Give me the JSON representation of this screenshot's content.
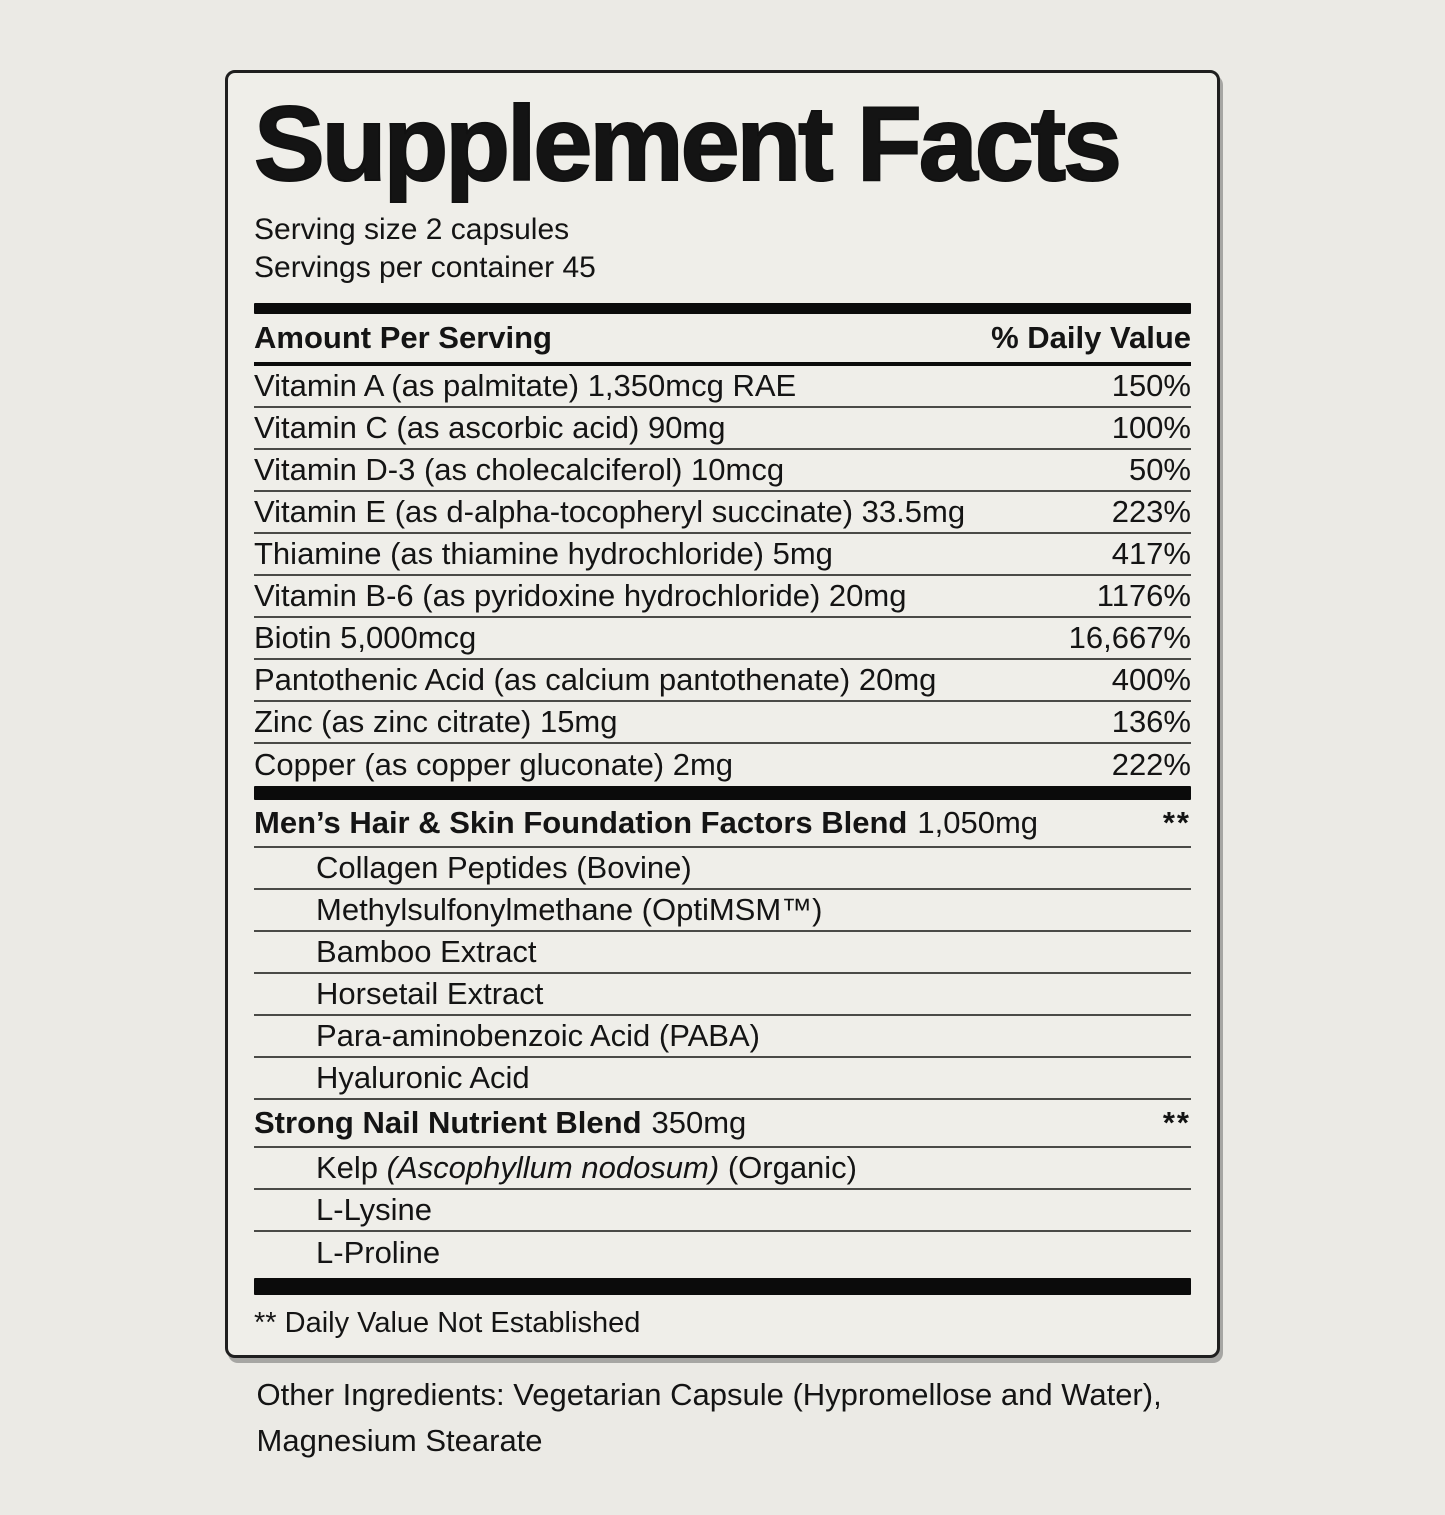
{
  "colors": {
    "page_background": "#ebeae5",
    "label_background": "#efeee9",
    "bar_black": "#0b0b0b",
    "hairline_gray": "#4a4a47",
    "text": "#141414"
  },
  "label": {
    "title": "Supplement Facts",
    "serving_size": "Serving size 2 capsules",
    "servings_per_container": "Servings per container 45",
    "columns": {
      "amount": "Amount Per Serving",
      "daily_value": "% Daily Value"
    },
    "nutrients": [
      {
        "name": "Vitamin A (as palmitate) 1,350mcg RAE",
        "dv": "150%"
      },
      {
        "name": "Vitamin C (as ascorbic acid) 90mg",
        "dv": "100%"
      },
      {
        "name": "Vitamin D-3 (as cholecalciferol) 10mcg",
        "dv": "50%"
      },
      {
        "name": "Vitamin E (as d-alpha-tocopheryl succinate) 33.5mg",
        "dv": "223%"
      },
      {
        "name": "Thiamine (as thiamine hydrochloride) 5mg",
        "dv": "417%"
      },
      {
        "name": "Vitamin B-6 (as pyridoxine hydrochloride) 20mg",
        "dv": "1176%"
      },
      {
        "name": "Biotin 5,000mcg",
        "dv": "16,667%"
      },
      {
        "name": "Pantothenic Acid (as calcium pantothenate) 20mg",
        "dv": "400%"
      },
      {
        "name": "Zinc (as zinc citrate) 15mg",
        "dv": "136%"
      },
      {
        "name": "Copper (as copper gluconate) 2mg",
        "dv": "222%"
      }
    ],
    "blends": [
      {
        "name": "Men’s Hair & Skin Foundation Factors Blend",
        "amount": "1,050mg",
        "dv": "**",
        "items": [
          {
            "pre": "Collagen Peptides (Bovine)"
          },
          {
            "pre": "Methylsulfonylmethane (OptiMSM™)"
          },
          {
            "pre": "Bamboo Extract"
          },
          {
            "pre": "Horsetail Extract"
          },
          {
            "pre": "Para-aminobenzoic Acid (PABA)"
          },
          {
            "pre": "Hyaluronic Acid"
          }
        ]
      },
      {
        "name": "Strong Nail Nutrient Blend",
        "amount": "350mg",
        "dv": "**",
        "items": [
          {
            "pre": "Kelp ",
            "it": "(Ascophyllum nodosum)",
            "post": " (Organic)"
          },
          {
            "pre": "L-Lysine"
          },
          {
            "pre": "L-Proline"
          }
        ]
      }
    ],
    "footnote": "** Daily Value Not Established",
    "other_ingredients": "Other Ingredients: Vegetarian Capsule (Hypromellose and Water), Magnesium Stearate"
  }
}
